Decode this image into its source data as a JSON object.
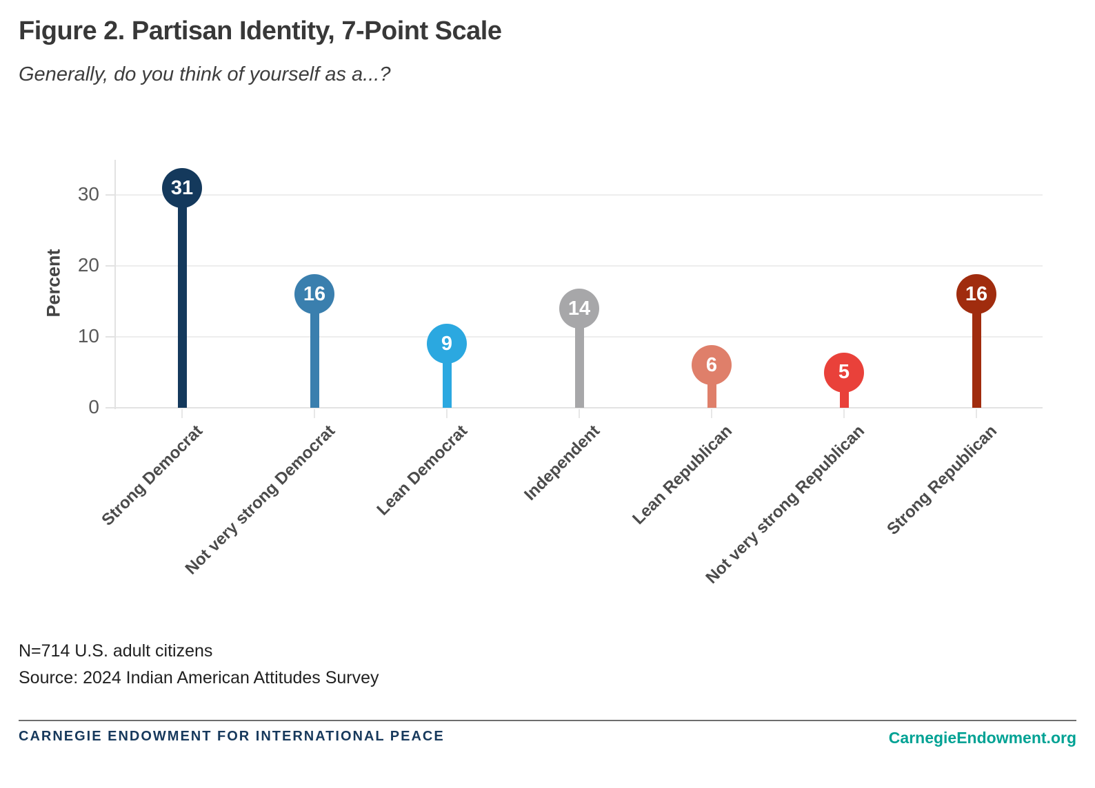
{
  "header": {
    "title": "Figure 2. Partisan Identity, 7-Point Scale",
    "subtitle": "Generally, do you think of yourself as a...?"
  },
  "chart_data": {
    "type": "bar",
    "variant": "lollipop",
    "title": "Figure 2. Partisan Identity, 7-Point Scale",
    "subtitle": "Generally, do you think of yourself as a...?",
    "categories": [
      "Strong Democrat",
      "Not very strong Democrat",
      "Lean Democrat",
      "Independent",
      "Lean Republican",
      "Not very strong Republican",
      "Strong Republican"
    ],
    "values": [
      31,
      16,
      9,
      14,
      6,
      5,
      16
    ],
    "colors": [
      "#14395C",
      "#3A7FAE",
      "#2BA8E0",
      "#A7A7A9",
      "#DF7F6A",
      "#E9413A",
      "#A02C0E"
    ],
    "value_label_color": "#ffffff",
    "xlabel": "",
    "ylabel": "Percent",
    "yticks": [
      0,
      10,
      20,
      30
    ],
    "ylim": [
      0,
      35
    ],
    "grid": "horizontal",
    "legend": "none"
  },
  "notes": {
    "sample": "N=714 U.S. adult citizens",
    "source": "Source: 2024 Indian American Attitudes Survey"
  },
  "footer": {
    "org": "CARNEGIE ENDOWMENT FOR INTERNATIONAL PEACE",
    "org_color": "#17395C",
    "site": "CarnegieEndowment.org",
    "site_color": "#00A294"
  }
}
